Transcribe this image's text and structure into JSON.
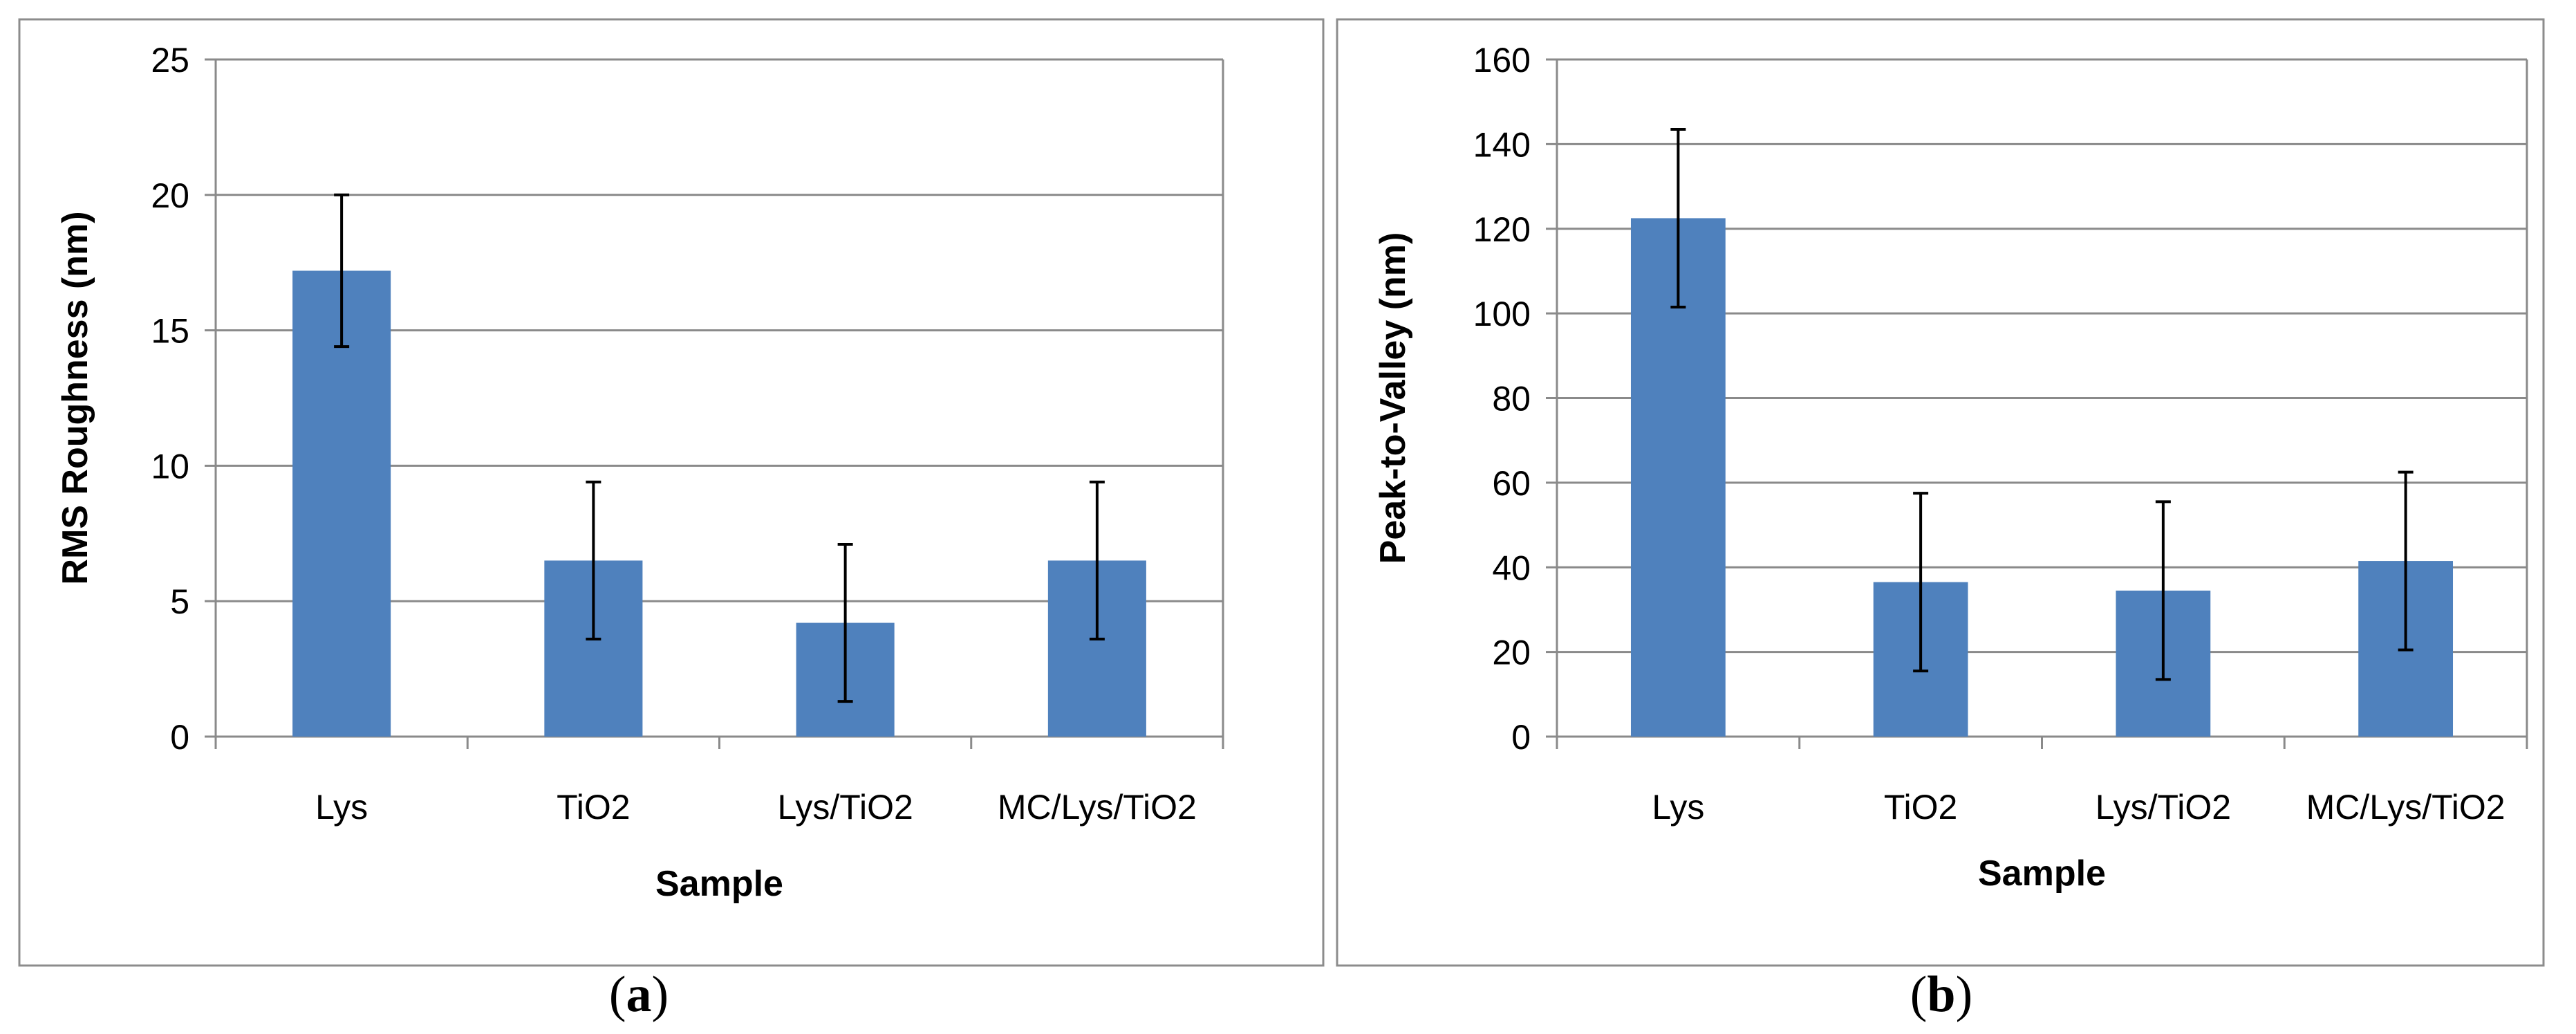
{
  "chart_data": [
    {
      "type": "bar",
      "panel_label": "(a)",
      "panel_letter": "a",
      "categories": [
        "Lys",
        "TiO2",
        "Lys/TiO2",
        "MC/Lys/TiO2"
      ],
      "values": [
        17.2,
        6.5,
        4.2,
        6.5
      ],
      "errors": [
        2.8,
        2.9,
        2.9,
        2.9
      ],
      "xlabel": "Sample",
      "ylabel": "RMS Roughness (nm)",
      "ylim": [
        0,
        25
      ],
      "yticks": [
        0,
        5,
        10,
        15,
        20,
        25
      ],
      "grid": true,
      "bar_color": "#4f81bd"
    },
    {
      "type": "bar",
      "panel_label": "(b)",
      "panel_letter": "b",
      "categories": [
        "Lys",
        "TiO2",
        "Lys/TiO2",
        "MC/Lys/TiO2"
      ],
      "values": [
        122.5,
        36.5,
        34.5,
        41.5
      ],
      "errors": [
        21,
        21,
        21,
        21
      ],
      "xlabel": "Sample",
      "ylabel": "Peak-to-Valley (nm)",
      "ylim": [
        0,
        160
      ],
      "yticks": [
        0,
        20,
        40,
        60,
        80,
        100,
        120,
        140,
        160
      ],
      "grid": true,
      "bar_color": "#4f81bd"
    }
  ]
}
